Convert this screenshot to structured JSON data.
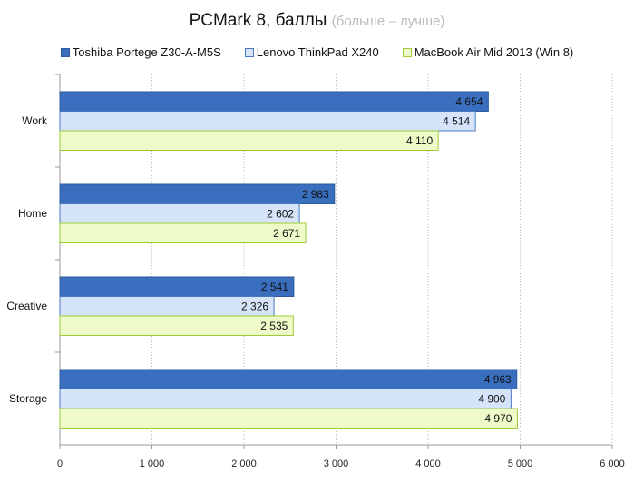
{
  "chart_data": {
    "type": "bar",
    "orientation": "horizontal",
    "title": "PCMark 8, баллы",
    "subtitle": "(больше – лучше)",
    "categories": [
      "Work",
      "Home",
      "Creative",
      "Storage"
    ],
    "series": [
      {
        "name": "Toshiba Portege Z30-A-M5S",
        "values": [
          4654,
          2983,
          2541,
          4963
        ],
        "labels": [
          "4 654",
          "2 983",
          "2 541",
          "4 963"
        ],
        "color": "#3a6fbf",
        "border": "#2e5a9a"
      },
      {
        "name": "Lenovo ThinkPad X240",
        "values": [
          4514,
          2602,
          2326,
          4900
        ],
        "labels": [
          "4 514",
          "2 602",
          "2 326",
          "4 900"
        ],
        "color": "#d6e4fa",
        "border": "#4a78c0"
      },
      {
        "name": "MacBook Air Mid 2013 (Win 8)",
        "values": [
          4110,
          2671,
          2535,
          4970
        ],
        "labels": [
          "4 110",
          "2 671",
          "2 535",
          "4 970"
        ],
        "color": "#eefbc8",
        "border": "#9ccc3a"
      }
    ],
    "xlim": [
      0,
      6000
    ],
    "xticks": [
      0,
      1000,
      2000,
      3000,
      4000,
      5000,
      6000
    ],
    "xtick_labels": [
      "0",
      "1 000",
      "2 000",
      "3 000",
      "4 000",
      "5 000",
      "6 000"
    ],
    "grid": true,
    "legend": "top"
  }
}
